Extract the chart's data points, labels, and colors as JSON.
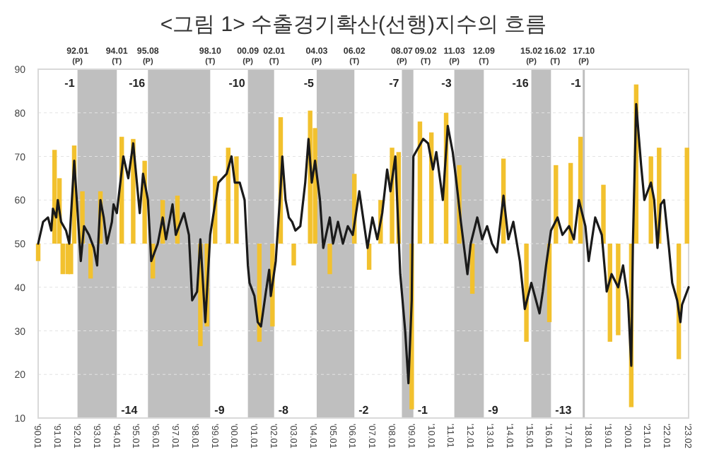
{
  "chart_data": {
    "type": "line",
    "title": "<그림 1> 수출경기확산(선행)지수의 흐름",
    "xlim": [
      "1990-01",
      "2023-02"
    ],
    "xticks": [
      {
        "value": "1990-01",
        "label": "'90.01"
      },
      {
        "value": "1991-01",
        "label": "'91.01"
      },
      {
        "value": "1992-01",
        "label": "'92.01"
      },
      {
        "value": "1993-01",
        "label": "'93.01"
      },
      {
        "value": "1994-01",
        "label": "'94.01"
      },
      {
        "value": "1995-01",
        "label": "'95.01"
      },
      {
        "value": "1996-01",
        "label": "'96.01"
      },
      {
        "value": "1997-01",
        "label": "'97.01"
      },
      {
        "value": "1998-01",
        "label": "'98.01"
      },
      {
        "value": "1999-01",
        "label": "'99.01"
      },
      {
        "value": "2000-01",
        "label": "'00.01"
      },
      {
        "value": "2001-01",
        "label": "'01.01"
      },
      {
        "value": "2002-01",
        "label": "'02.01"
      },
      {
        "value": "2003-01",
        "label": "'03.01"
      },
      {
        "value": "2004-01",
        "label": "'04.01"
      },
      {
        "value": "2005-01",
        "label": "'05.01"
      },
      {
        "value": "2006-01",
        "label": "'06.01"
      },
      {
        "value": "2007-01",
        "label": "'07.01"
      },
      {
        "value": "2008-01",
        "label": "'08.01"
      },
      {
        "value": "2009-01",
        "label": "'09.01"
      },
      {
        "value": "2010-01",
        "label": "'10.01"
      },
      {
        "value": "2011-01",
        "label": "'11.01"
      },
      {
        "value": "2012-01",
        "label": "'12.01"
      },
      {
        "value": "2013-01",
        "label": "'13.01"
      },
      {
        "value": "2014-01",
        "label": "'14.01"
      },
      {
        "value": "2015-01",
        "label": "'15.01"
      },
      {
        "value": "2016-01",
        "label": "'16.01"
      },
      {
        "value": "2017-01",
        "label": "'17.01"
      },
      {
        "value": "2018-01",
        "label": "'18.01"
      },
      {
        "value": "2019-01",
        "label": "'19.01"
      },
      {
        "value": "2020-01",
        "label": "'20.01"
      },
      {
        "value": "2021-01",
        "label": "'21.01"
      },
      {
        "value": "2022-01",
        "label": "'22.01"
      },
      {
        "value": "2023-02",
        "label": "'23.02"
      }
    ],
    "ylim": [
      10,
      90
    ],
    "yticks": [
      10,
      20,
      30,
      40,
      50,
      60,
      70,
      80,
      90
    ],
    "grid": "y",
    "bands": [
      {
        "axis": "x",
        "from": "1992-01",
        "to": "1994-01",
        "color": "#bfbfbf"
      },
      {
        "axis": "x",
        "from": "1995-08",
        "to": "1998-10",
        "color": "#bfbfbf"
      },
      {
        "axis": "x",
        "from": "2000-09",
        "to": "2002-01",
        "color": "#bfbfbf"
      },
      {
        "axis": "x",
        "from": "2004-03",
        "to": "2006-02",
        "color": "#bfbfbf"
      },
      {
        "axis": "x",
        "from": "2008-07",
        "to": "2009-02",
        "color": "#bfbfbf"
      },
      {
        "axis": "x",
        "from": "2011-03",
        "to": "2012-09",
        "color": "#bfbfbf"
      },
      {
        "axis": "x",
        "from": "2015-02",
        "to": "2016-02",
        "color": "#bfbfbf"
      }
    ],
    "ref_lines": [
      {
        "axis": "x",
        "value": "2017-10",
        "color": "#bfbfbf"
      }
    ],
    "annotations": [
      {
        "text": "92.01",
        "x": "1992-01",
        "y": 90
      },
      {
        "text": "(P)",
        "x": "1992-01",
        "y": 90
      },
      {
        "text": "94.01",
        "x": "1994-01",
        "y": 90
      },
      {
        "text": "(T)",
        "x": "1994-01",
        "y": 90
      },
      {
        "text": "95.08",
        "x": "1995-08",
        "y": 90
      },
      {
        "text": "(P)",
        "x": "1995-08",
        "y": 90
      },
      {
        "text": "98.10",
        "x": "1998-10",
        "y": 90
      },
      {
        "text": "(T)",
        "x": "1998-10",
        "y": 90
      },
      {
        "text": "00.09",
        "x": "2000-09",
        "y": 90
      },
      {
        "text": "(P)",
        "x": "2000-09",
        "y": 90
      },
      {
        "text": "02.01",
        "x": "2002-01",
        "y": 90
      },
      {
        "text": "(T)",
        "x": "2002-01",
        "y": 90
      },
      {
        "text": "04.03",
        "x": "2004-03",
        "y": 90
      },
      {
        "text": "(P)",
        "x": "2004-03",
        "y": 90
      },
      {
        "text": "06.02",
        "x": "2006-02",
        "y": 90
      },
      {
        "text": "(T)",
        "x": "2006-02",
        "y": 90
      },
      {
        "text": "08.07",
        "x": "2008-07",
        "y": 90
      },
      {
        "text": "(P)",
        "x": "2008-07",
        "y": 90
      },
      {
        "text": "09.02",
        "x": "2009-02",
        "y": 90
      },
      {
        "text": "(T)",
        "x": "2009-02",
        "y": 90
      },
      {
        "text": "11.03",
        "x": "2011-03",
        "y": 90
      },
      {
        "text": "(P)",
        "x": "2011-03",
        "y": 90
      },
      {
        "text": "12.09",
        "x": "2012-09",
        "y": 90
      },
      {
        "text": "(T)",
        "x": "2012-09",
        "y": 90
      },
      {
        "text": "15.02",
        "x": "2015-02",
        "y": 90
      },
      {
        "text": "(P)",
        "x": "2015-02",
        "y": 90
      },
      {
        "text": "16.02",
        "x": "2016-02",
        "y": 90
      },
      {
        "text": "(T)",
        "x": "2016-02",
        "y": 90
      },
      {
        "text": "17.10",
        "x": "2017-10",
        "y": 90
      },
      {
        "text": "(P)",
        "x": "2017-10",
        "y": 90
      },
      {
        "text": "-1",
        "x": "1992-01",
        "y": 87
      },
      {
        "text": "-16",
        "x": "1995-08",
        "y": 87
      },
      {
        "text": "-10",
        "x": "2000-09",
        "y": 87
      },
      {
        "text": "-5",
        "x": "2004-03",
        "y": 87
      },
      {
        "text": "-7",
        "x": "2008-07",
        "y": 87
      },
      {
        "text": "-3",
        "x": "2011-03",
        "y": 87
      },
      {
        "text": "-16",
        "x": "2015-02",
        "y": 87
      },
      {
        "text": "-1",
        "x": "2017-10",
        "y": 87
      },
      {
        "text": "-14",
        "x": "1994-01",
        "y": 12
      },
      {
        "text": "-9",
        "x": "1998-10",
        "y": 12
      },
      {
        "text": "-8",
        "x": "2002-01",
        "y": 12
      },
      {
        "text": "-2",
        "x": "2006-02",
        "y": 12
      },
      {
        "text": "-1",
        "x": "2009-02",
        "y": 12
      },
      {
        "text": "-9",
        "x": "2012-09",
        "y": 12
      },
      {
        "text": "-13",
        "x": "2016-02",
        "y": 12
      }
    ],
    "series": [
      {
        "type": "bar",
        "color": "#f2c12e",
        "x": [
          "1990-01",
          "1990-11",
          "1991-02",
          "1991-04",
          "1991-07",
          "1991-09",
          "1991-11",
          "1992-04",
          "1992-09",
          "1993-03",
          "1994-04",
          "1994-11",
          "1995-06",
          "1995-11",
          "1996-05",
          "1997-02",
          "1998-04",
          "1998-08",
          "1999-01",
          "1999-09",
          "2000-02",
          "2001-04",
          "2001-12",
          "2002-05",
          "2003-01",
          "2003-11",
          "2004-02",
          "2004-11",
          "2006-02",
          "2006-11",
          "2007-06",
          "2008-01",
          "2008-05",
          "2009-01",
          "2009-06",
          "2010-01",
          "2010-10",
          "2011-06",
          "2012-02",
          "2013-09",
          "2014-11",
          "2016-01",
          "2016-05",
          "2017-02",
          "2017-08",
          "2018-10",
          "2019-02",
          "2019-07",
          "2020-03",
          "2020-06",
          "2021-03",
          "2021-08",
          "2022-08",
          "2023-01"
        ],
        "base": [
          50,
          50,
          50,
          50,
          50,
          50,
          50,
          50,
          50,
          50,
          50,
          50,
          50,
          50,
          50,
          50,
          50,
          50,
          50,
          50,
          50,
          50,
          50,
          50,
          50,
          50,
          50,
          50,
          50,
          50,
          50,
          50,
          50,
          50,
          50,
          50,
          50,
          50,
          50,
          50,
          50,
          50,
          50,
          50,
          50,
          50,
          50,
          50,
          50,
          50,
          50,
          50,
          50,
          50
        ],
        "values": [
          -4,
          21.5,
          15,
          -7,
          -7,
          -7,
          22.5,
          12,
          -8,
          12,
          24.5,
          24,
          19,
          -8,
          10,
          11,
          -23.5,
          -19,
          15.5,
          22,
          20,
          -22.5,
          -19,
          29,
          -5,
          30.5,
          26.5,
          -7,
          16,
          -6,
          10,
          22,
          21,
          -38,
          28,
          25.5,
          30,
          18,
          -11.5,
          19.5,
          -22.5,
          -18,
          18,
          18.5,
          24.5,
          13.5,
          -22.5,
          -21,
          -37.5,
          36.5,
          20,
          22,
          -26.5,
          22
        ]
      },
      {
        "color": "#1a1a1a",
        "x": [
          "1990-01",
          "1990-04",
          "1990-07",
          "1990-09",
          "1990-10",
          "1990-12",
          "1991-01",
          "1991-03",
          "1991-06",
          "1991-08",
          "1991-11",
          "1992-03",
          "1992-05",
          "1992-08",
          "1992-11",
          "1993-01",
          "1993-03",
          "1993-05",
          "1993-07",
          "1993-10",
          "1993-11",
          "1994-01",
          "1994-05",
          "1994-08",
          "1994-11",
          "1995-03",
          "1995-05",
          "1995-08",
          "1995-10",
          "1996-02",
          "1996-05",
          "1996-07",
          "1996-11",
          "1997-01",
          "1997-06",
          "1997-09",
          "1997-11",
          "1998-02",
          "1998-04",
          "1998-07",
          "1998-10",
          "1999-03",
          "1999-08",
          "1999-11",
          "2000-01",
          "2000-04",
          "2000-07",
          "2000-09",
          "2000-10",
          "2001-01",
          "2001-03",
          "2001-05",
          "2001-08",
          "2001-10",
          "2001-11",
          "2002-02",
          "2002-05",
          "2002-06",
          "2002-08",
          "2002-10",
          "2002-12",
          "2003-02",
          "2003-05",
          "2003-08",
          "2003-10",
          "2003-12",
          "2004-02",
          "2004-05",
          "2004-07",
          "2004-11",
          "2005-01",
          "2005-04",
          "2005-07",
          "2005-10",
          "2006-01",
          "2006-05",
          "2006-10",
          "2007-01",
          "2007-04",
          "2007-07",
          "2007-10",
          "2007-12",
          "2008-03",
          "2008-06",
          "2008-09",
          "2008-11",
          "2009-01",
          "2009-02",
          "2009-08",
          "2009-11",
          "2010-02",
          "2010-04",
          "2010-08",
          "2010-11",
          "2011-02",
          "2011-04",
          "2011-07",
          "2011-11",
          "2012-01",
          "2012-05",
          "2012-08",
          "2012-11",
          "2013-02",
          "2013-05",
          "2013-09",
          "2013-12",
          "2014-03",
          "2014-07",
          "2014-10",
          "2015-02",
          "2015-07",
          "2015-09",
          "2015-11",
          "2016-02",
          "2016-06",
          "2016-09",
          "2017-01",
          "2017-04",
          "2017-07",
          "2017-11",
          "2018-01",
          "2018-05",
          "2018-09",
          "2018-12",
          "2019-03",
          "2019-07",
          "2019-10",
          "2020-01",
          "2020-03",
          "2020-04",
          "2020-06",
          "2020-09",
          "2020-11",
          "2021-03",
          "2021-05",
          "2021-07",
          "2021-09",
          "2021-11",
          "2022-02",
          "2022-04",
          "2022-07",
          "2022-09",
          "2022-10",
          "2023-02"
        ],
        "values": [
          50,
          55,
          56,
          53,
          58,
          56,
          60,
          55,
          53,
          50,
          69,
          46,
          54,
          52,
          49,
          45,
          60,
          56,
          50,
          55,
          59,
          57,
          70,
          65,
          73,
          57,
          66,
          60,
          46,
          50,
          56,
          51,
          59,
          52,
          57,
          52,
          37,
          39,
          51,
          32,
          52,
          64,
          66,
          70,
          64,
          64,
          60,
          45,
          41,
          38,
          32,
          31,
          39,
          44,
          38,
          46,
          63,
          70,
          60,
          56,
          55,
          53,
          54,
          64,
          74,
          64,
          69,
          60,
          49,
          56,
          50,
          55,
          50,
          54,
          52,
          62,
          49,
          56,
          51,
          57,
          67,
          62,
          70,
          43,
          30,
          18,
          37,
          70,
          74,
          73,
          67,
          71,
          60,
          77,
          71,
          65,
          55,
          43,
          50,
          56,
          51,
          54,
          50,
          48,
          61,
          51,
          55,
          46,
          35,
          41,
          34,
          39,
          45,
          53,
          56,
          52,
          54,
          51,
          60,
          54,
          46,
          56,
          52,
          39,
          43,
          40,
          45,
          37,
          22,
          50,
          82,
          68,
          60,
          64,
          60,
          49,
          59,
          60,
          49,
          41,
          37,
          32,
          36,
          40
        ]
      }
    ]
  }
}
